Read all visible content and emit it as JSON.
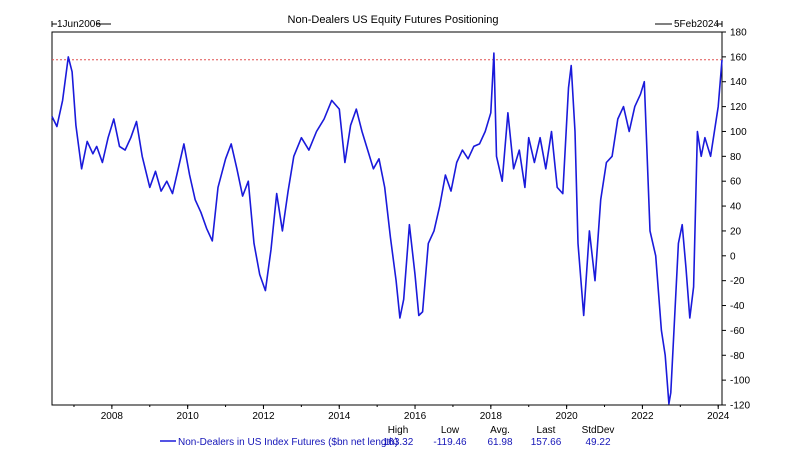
{
  "chart_data": {
    "type": "line",
    "title": "Non-Dealers US Equity Futures Positioning",
    "start_label": "1Jun2006",
    "end_label": "5Feb2024",
    "xlim": [
      2006.42,
      2024.1
    ],
    "ylim": [
      -120,
      180
    ],
    "x_ticks": [
      "2008",
      "2010",
      "2012",
      "2014",
      "2016",
      "2018",
      "2020",
      "2022",
      "2024"
    ],
    "y_ticks": [
      "180",
      "160",
      "140",
      "120",
      "100",
      "80",
      "60",
      "40",
      "20",
      "0",
      "-20",
      "-40",
      "-60",
      "-80",
      "-100",
      "-120"
    ],
    "reference_line": {
      "value": 157.66,
      "style": "dotted",
      "color": "#e05050"
    },
    "series": [
      {
        "name": "Non-Dealers in US Index Futures ($bn net length)",
        "color": "#1a1adb",
        "x": [
          2006.42,
          2006.55,
          2006.7,
          2006.85,
          2006.95,
          2007.05,
          2007.2,
          2007.35,
          2007.5,
          2007.6,
          2007.75,
          2007.9,
          2008.05,
          2008.2,
          2008.35,
          2008.5,
          2008.65,
          2008.8,
          2009.0,
          2009.15,
          2009.3,
          2009.45,
          2009.6,
          2009.75,
          2009.9,
          2010.05,
          2010.2,
          2010.35,
          2010.5,
          2010.65,
          2010.8,
          2011.0,
          2011.15,
          2011.3,
          2011.45,
          2011.6,
          2011.75,
          2011.9,
          2012.05,
          2012.2,
          2012.35,
          2012.5,
          2012.65,
          2012.8,
          2013.0,
          2013.2,
          2013.4,
          2013.6,
          2013.8,
          2014.0,
          2014.15,
          2014.3,
          2014.45,
          2014.6,
          2014.75,
          2014.9,
          2015.05,
          2015.2,
          2015.35,
          2015.5,
          2015.6,
          2015.7,
          2015.85,
          2016.0,
          2016.1,
          2016.2,
          2016.35,
          2016.5,
          2016.65,
          2016.8,
          2016.95,
          2017.1,
          2017.25,
          2017.4,
          2017.55,
          2017.7,
          2017.85,
          2018.0,
          2018.08,
          2018.15,
          2018.3,
          2018.45,
          2018.6,
          2018.75,
          2018.9,
          2019.0,
          2019.15,
          2019.3,
          2019.45,
          2019.6,
          2019.75,
          2019.9,
          2020.05,
          2020.12,
          2020.22,
          2020.3,
          2020.45,
          2020.6,
          2020.75,
          2020.9,
          2021.05,
          2021.2,
          2021.35,
          2021.5,
          2021.65,
          2021.8,
          2021.95,
          2022.05,
          2022.2,
          2022.35,
          2022.5,
          2022.6,
          2022.7,
          2022.75,
          2022.85,
          2022.95,
          2023.05,
          2023.15,
          2023.25,
          2023.35,
          2023.45,
          2023.55,
          2023.65,
          2023.8,
          2023.9,
          2024.0,
          2024.1
        ],
        "y": [
          112,
          104,
          125,
          160,
          148,
          105,
          70,
          92,
          82,
          88,
          75,
          95,
          110,
          88,
          85,
          95,
          108,
          80,
          55,
          68,
          52,
          60,
          50,
          70,
          90,
          65,
          45,
          35,
          22,
          12,
          55,
          78,
          90,
          70,
          48,
          60,
          10,
          -15,
          -28,
          5,
          50,
          20,
          52,
          80,
          95,
          85,
          100,
          110,
          125,
          118,
          75,
          105,
          118,
          100,
          85,
          70,
          78,
          55,
          15,
          -20,
          -50,
          -35,
          25,
          -15,
          -48,
          -45,
          10,
          20,
          40,
          65,
          52,
          75,
          85,
          78,
          88,
          90,
          100,
          115,
          163,
          80,
          60,
          115,
          70,
          85,
          55,
          95,
          75,
          95,
          70,
          100,
          55,
          50,
          135,
          153,
          100,
          10,
          -48,
          20,
          -20,
          45,
          75,
          80,
          110,
          120,
          100,
          120,
          130,
          140,
          20,
          0,
          -60,
          -80,
          -119,
          -110,
          -50,
          10,
          25,
          -10,
          -50,
          -25,
          100,
          80,
          95,
          80,
          100,
          120,
          157.66
        ]
      }
    ],
    "stats": {
      "headers": [
        "High",
        "Low",
        "Avg.",
        "Last",
        "StdDev"
      ],
      "values": [
        "163.32",
        "-119.46",
        "61.98",
        "157.66",
        "49.22"
      ]
    }
  }
}
